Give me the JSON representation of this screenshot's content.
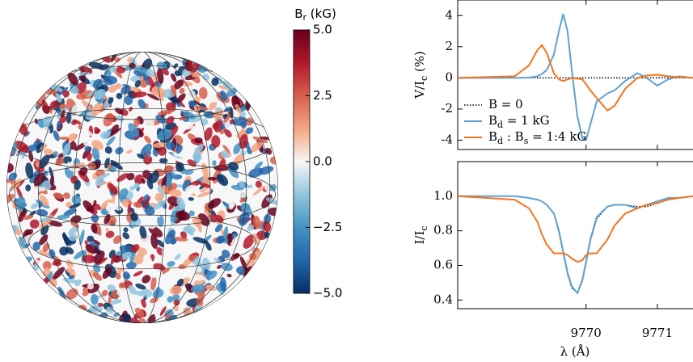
{
  "chart_data": [
    {
      "type": "colorbar",
      "title": [
        "B",
        "r",
        " (kG)"
      ],
      "ylim": [
        -5,
        5
      ],
      "yticks": [
        {
          "value": 5,
          "label": "5.0"
        },
        {
          "value": 2.5,
          "label": "2.5"
        },
        {
          "value": 0,
          "label": "0.0"
        },
        {
          "value": -2.5,
          "label": "−2.5"
        },
        {
          "value": -5,
          "label": "−5.0"
        }
      ],
      "colormap": [
        "#053061",
        "#2166ac",
        "#4393c3",
        "#92c5de",
        "#f7f7f7",
        "#f4a582",
        "#d6604d",
        "#b2182b",
        "#67001f"
      ]
    },
    {
      "type": "line",
      "ylabel": [
        "V/I",
        "c",
        " (%)"
      ],
      "xlim": [
        9768.2,
        9771.5
      ],
      "xticks": [
        9770,
        9771
      ],
      "ylim": [
        -4.6,
        5.0
      ],
      "yticks": [
        -4,
        -2,
        0,
        2,
        4
      ],
      "legend": "lower left",
      "x": [
        9768.2,
        9769.0,
        9769.2,
        9769.32,
        9769.38,
        9769.45,
        9769.55,
        9769.62,
        9769.68,
        9769.74,
        9769.8,
        9769.88,
        9769.95,
        9770.0,
        9770.06,
        9770.15,
        9770.3,
        9770.4,
        9770.55,
        9770.72,
        9770.85,
        9771.0,
        9771.15,
        9771.3,
        9771.5
      ],
      "series": [
        {
          "name": [
            "B = 0"
          ],
          "color": "#000000",
          "dash": "dotted",
          "values": [
            0,
            0,
            0,
            0,
            0,
            0,
            0,
            0,
            0,
            0,
            0,
            0,
            0,
            0,
            0,
            0,
            0,
            0,
            0,
            0,
            0,
            0,
            0,
            0,
            0
          ]
        },
        {
          "name": [
            "B",
            "d",
            " = 1 kG"
          ],
          "color": "#5fa2d5",
          "values": [
            0,
            0,
            0.02,
            0.1,
            0.25,
            0.5,
            1.5,
            3.0,
            4.1,
            3.0,
            0.5,
            -2.5,
            -3.9,
            -4.0,
            -3.0,
            -1.5,
            -1.0,
            -0.8,
            -0.2,
            0.3,
            0.0,
            -0.5,
            -0.1,
            0.1,
            0
          ]
        },
        {
          "name": [
            "B",
            "d",
            " : B",
            "s",
            " = 1:4 kG"
          ],
          "color": "#f5741f",
          "values": [
            0,
            0.1,
            0.8,
            1.8,
            2.1,
            1.6,
            0.3,
            -0.1,
            -0.2,
            -0.1,
            0.0,
            -0.05,
            -0.1,
            -0.4,
            -0.8,
            -1.3,
            -2.1,
            -1.8,
            -0.7,
            0.0,
            0.15,
            0.2,
            0.1,
            0.05,
            0
          ]
        }
      ]
    },
    {
      "type": "line",
      "ylabel": [
        "I/I",
        "c"
      ],
      "xlabel": "λ (Å)",
      "xlim": [
        9768.2,
        9771.5
      ],
      "xticks": [
        9770,
        9771
      ],
      "ylim": [
        0.35,
        1.2
      ],
      "yticks": [
        0.4,
        0.6,
        0.8,
        {
          "value": 1.0,
          "label": "1.0"
        }
      ],
      "x": [
        9768.2,
        9769.0,
        9769.2,
        9769.32,
        9769.38,
        9769.45,
        9769.55,
        9769.62,
        9769.68,
        9769.74,
        9769.8,
        9769.88,
        9769.95,
        9770.0,
        9770.06,
        9770.15,
        9770.3,
        9770.4,
        9770.55,
        9770.72,
        9770.85,
        9771.0,
        9771.15,
        9771.3,
        9771.5
      ],
      "series": [
        {
          "name": [
            "B = 0"
          ],
          "color": "#000000",
          "dash": "dotted",
          "values": [
            1.0,
            1.0,
            0.99,
            0.98,
            0.97,
            0.95,
            0.9,
            0.79,
            0.67,
            0.55,
            0.47,
            0.44,
            0.51,
            0.61,
            0.74,
            0.87,
            0.94,
            0.95,
            0.95,
            0.94,
            0.94,
            0.96,
            0.98,
            0.99,
            1.0
          ]
        },
        {
          "name": [
            "B",
            "d",
            " = 1 kG"
          ],
          "color": "#5fa2d5",
          "values": [
            1.0,
            1.0,
            0.99,
            0.98,
            0.97,
            0.95,
            0.9,
            0.8,
            0.68,
            0.56,
            0.48,
            0.44,
            0.52,
            0.62,
            0.75,
            0.88,
            0.94,
            0.95,
            0.95,
            0.93,
            0.95,
            0.97,
            0.99,
            0.99,
            1.0
          ]
        },
        {
          "name": [
            "B",
            "d",
            " : B",
            "s",
            " = 1:4 kG"
          ],
          "color": "#f5741f",
          "values": [
            1.0,
            0.98,
            0.93,
            0.85,
            0.78,
            0.72,
            0.67,
            0.67,
            0.67,
            0.66,
            0.64,
            0.62,
            0.63,
            0.66,
            0.67,
            0.67,
            0.75,
            0.83,
            0.9,
            0.93,
            0.95,
            0.96,
            0.98,
            0.99,
            1.0
          ]
        }
      ]
    }
  ]
}
